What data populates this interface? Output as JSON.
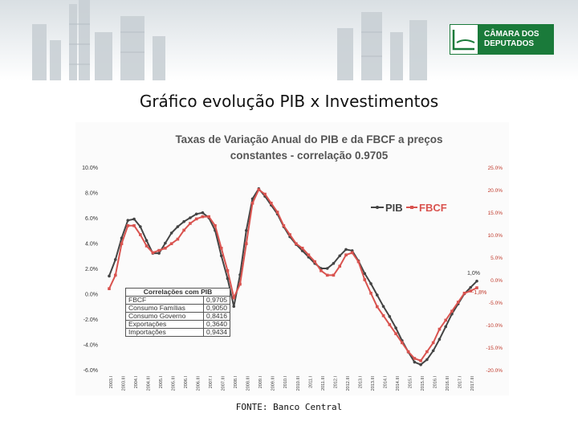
{
  "page": {
    "title": "Gráfico evolução PIB x Investimentos",
    "source": "FONTE: Banco Central"
  },
  "logo": {
    "line1": "CÂMARA DOS",
    "line2": "DEPUTADOS",
    "color": "#1a7a3a"
  },
  "chart_data": {
    "type": "line",
    "title_line1": "Taxas de Variação Anual do PIB e da FBCF a preços",
    "title_line2": "constantes - correlação 0.9705",
    "y_left": {
      "min": -6,
      "max": 10,
      "ticks": [
        "10.0%",
        "8.0%",
        "6.0%",
        "4.0%",
        "2.0%",
        "0.0%",
        "-2.0%",
        "-4.0%",
        "-6.0%"
      ]
    },
    "y_right": {
      "min": -20,
      "max": 25,
      "ticks": [
        "25.0%",
        "20.0%",
        "15.0%",
        "10.0%",
        "5.0%",
        "0.0%",
        "-5.0%",
        "-10.0%",
        "-15.0%",
        "-20.0%"
      ]
    },
    "x_labels": [
      "2003.I",
      "2003.III",
      "2004.I",
      "2004.III",
      "2005.I",
      "2005.III",
      "2006.I",
      "2006.III",
      "2007.I",
      "2007.III",
      "2008.I",
      "2008.III",
      "2009.I",
      "2009.III",
      "2010.I",
      "2010.III",
      "2011.I",
      "2011.III",
      "2012.I",
      "2012.III",
      "2013.I",
      "2013.III",
      "2014.I",
      "2014.III",
      "2015.I",
      "2015.III",
      "2016.I",
      "2016.III",
      "2017.I",
      "2017.III"
    ],
    "series": [
      {
        "name": "PIB",
        "axis": "left",
        "color": "#444444",
        "values": [
          1.4,
          2.7,
          4.4,
          5.8,
          5.9,
          5.3,
          4.2,
          3.2,
          3.2,
          4.0,
          4.8,
          5.3,
          5.7,
          6.0,
          6.3,
          6.4,
          6.0,
          5.0,
          3.0,
          1.2,
          -1.0,
          1.5,
          5.0,
          7.5,
          8.3,
          7.7,
          7.0,
          6.3,
          5.3,
          4.5,
          3.9,
          3.4,
          2.9,
          2.4,
          2.0,
          2.0,
          2.4,
          3.0,
          3.5,
          3.4,
          2.6,
          1.6,
          0.8,
          -0.1,
          -1.0,
          -1.8,
          -2.7,
          -3.7,
          -4.6,
          -5.4,
          -5.6,
          -5.2,
          -4.5,
          -3.6,
          -2.6,
          -1.6,
          -0.8,
          0.0,
          0.5,
          1.0
        ]
      },
      {
        "name": "FBCF",
        "axis": "right",
        "color": "#d9534f",
        "values": [
          -2.0,
          1.0,
          8.0,
          12.0,
          12.0,
          10.0,
          7.5,
          6.0,
          6.5,
          7.0,
          8.0,
          9.0,
          11.0,
          12.5,
          13.5,
          14.0,
          14.0,
          12.0,
          7.0,
          2.0,
          -4.0,
          -1.0,
          8.0,
          17.0,
          20.0,
          19.0,
          17.0,
          15.0,
          12.0,
          10.0,
          8.0,
          7.0,
          5.5,
          4.0,
          2.0,
          1.0,
          1.0,
          3.0,
          5.5,
          6.0,
          4.0,
          0.0,
          -3.0,
          -6.0,
          -8.0,
          -10.0,
          -12.0,
          -14.0,
          -16.0,
          -17.5,
          -18.0,
          -16.0,
          -14.0,
          -11.0,
          -9.0,
          -7.0,
          -5.0,
          -3.0,
          -2.5,
          -1.8
        ]
      }
    ],
    "annotations": {
      "pib_last": "1,0%",
      "fbcf_last": "-1,8%"
    },
    "legend": {
      "position": "top-right",
      "pib": "PIB",
      "fbcf": "FBCF"
    },
    "correlations": {
      "header": "Correlações com PIB",
      "rows": [
        {
          "label": "FBCF",
          "value": "0,9705"
        },
        {
          "label": "Consumo Famílias",
          "value": "0,9050"
        },
        {
          "label": "Consumo Governo",
          "value": "0,8416"
        },
        {
          "label": "Exportações",
          "value": "0,3640"
        },
        {
          "label": "Importações",
          "value": "0,9434"
        }
      ]
    }
  }
}
